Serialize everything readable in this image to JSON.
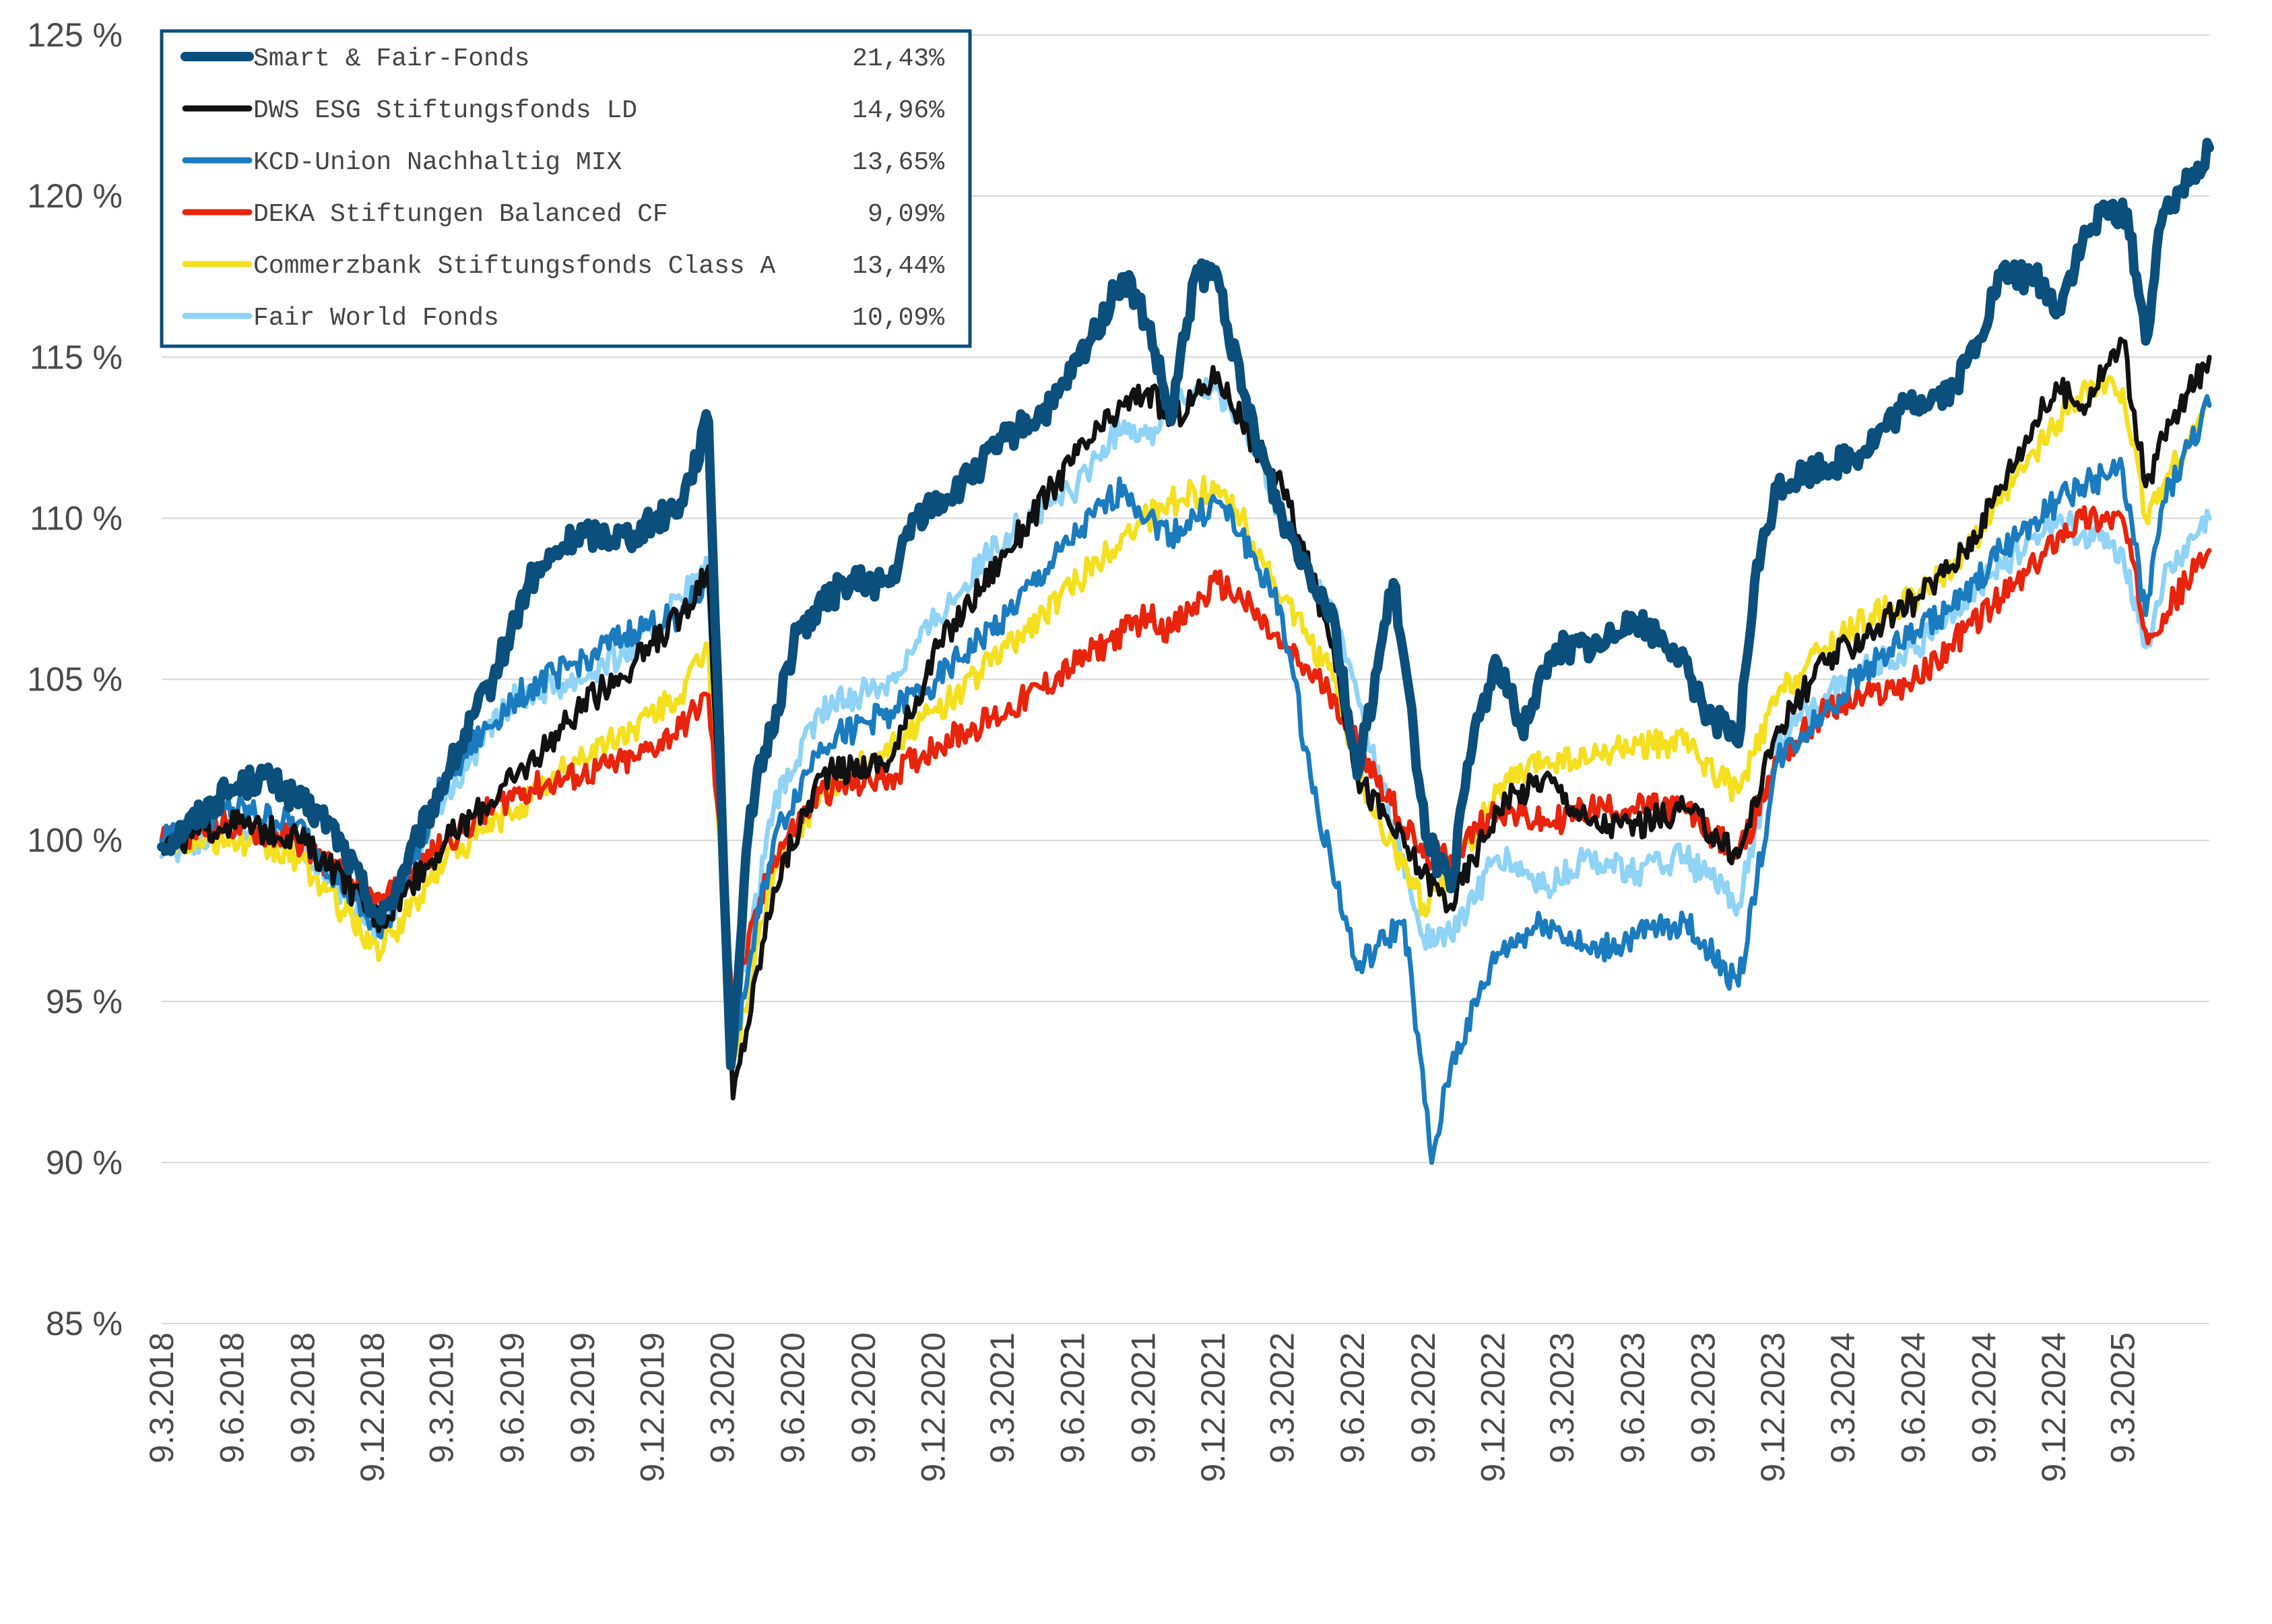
{
  "chart_data": {
    "type": "line",
    "title": "",
    "xlabel": "",
    "ylabel": "",
    "ylim": [
      85,
      125
    ],
    "yticks": [
      85,
      90,
      95,
      100,
      105,
      110,
      115,
      120,
      125
    ],
    "ytick_labels": [
      "85 %",
      "90 %",
      "95 %",
      "100 %",
      "105 %",
      "110 %",
      "115 %",
      "120 %",
      "125 %"
    ],
    "xlim": [
      "2018-03-09",
      "2025-06-30"
    ],
    "xticks": [
      "2018-03-09",
      "2018-06-09",
      "2018-09-09",
      "2018-12-09",
      "2019-03-09",
      "2019-06-09",
      "2019-09-09",
      "2019-12-09",
      "2020-03-09",
      "2020-06-09",
      "2020-09-09",
      "2020-12-09",
      "2021-03-09",
      "2021-06-09",
      "2021-09-09",
      "2021-12-09",
      "2022-03-09",
      "2022-06-09",
      "2022-09-09",
      "2022-12-09",
      "2023-03-09",
      "2023-06-09",
      "2023-09-09",
      "2023-12-09",
      "2024-03-09",
      "2024-06-09",
      "2024-09-09",
      "2024-12-09",
      "2025-03-09"
    ],
    "xtick_labels": [
      "9.3.2018",
      "9.6.2018",
      "9.9.2018",
      "9.12.2018",
      "9.3.2019",
      "9.6.2019",
      "9.9.2019",
      "9.12.2019",
      "9.3.2020",
      "9.6.2020",
      "9.9.2020",
      "9.12.2020",
      "9.3.2021",
      "9.6.2021",
      "9.9.2021",
      "9.12.2021",
      "9.3.2022",
      "9.6.2022",
      "9.9.2022",
      "9.12.2022",
      "9.3.2023",
      "9.6.2023",
      "9.9.2023",
      "9.12.2023",
      "9.3.2024",
      "9.6.2024",
      "9.9.2024",
      "9.12.2024",
      "9.3.2025"
    ],
    "grid": true,
    "legend_position": "top-left",
    "series": [
      {
        "name": "Smart & Fair-Fonds",
        "legend_value": "21,43%",
        "color": "#0b4f7c",
        "x": [
          "2018-03-09",
          "2018-06-01",
          "2018-07-20",
          "2018-10-15",
          "2018-12-20",
          "2019-03-15",
          "2019-05-15",
          "2019-07-01",
          "2019-09-01",
          "2019-11-15",
          "2020-01-15",
          "2020-02-20",
          "2020-03-20",
          "2020-04-15",
          "2020-06-15",
          "2020-08-15",
          "2020-10-15",
          "2020-11-15",
          "2021-01-15",
          "2021-03-15",
          "2021-05-15",
          "2021-07-01",
          "2021-08-15",
          "2021-09-15",
          "2021-10-15",
          "2021-11-15",
          "2021-12-15",
          "2022-01-15",
          "2022-03-09",
          "2022-05-15",
          "2022-06-15",
          "2022-08-01",
          "2022-09-15",
          "2022-10-15",
          "2022-11-15",
          "2022-12-15",
          "2023-01-15",
          "2023-03-01",
          "2023-05-01",
          "2023-06-01",
          "2023-08-01",
          "2023-09-15",
          "2023-10-25",
          "2023-11-15",
          "2023-12-15",
          "2024-02-01",
          "2024-04-01",
          "2024-06-01",
          "2024-08-01",
          "2024-09-01",
          "2024-10-01",
          "2024-11-15",
          "2024-12-15",
          "2025-01-15",
          "2025-02-15",
          "2025-03-15",
          "2025-04-08",
          "2025-05-01",
          "2025-06-30"
        ],
        "y": [
          99.8,
          101.5,
          102.0,
          100.5,
          97.5,
          102.0,
          105.0,
          108.0,
          109.5,
          109.5,
          110.5,
          113.0,
          93.0,
          101.0,
          106.5,
          108.0,
          108.0,
          110.0,
          111.0,
          112.5,
          113.5,
          115.5,
          117.5,
          116.0,
          113.0,
          117.5,
          117.5,
          114.0,
          110.0,
          107.0,
          102.0,
          108.0,
          100.0,
          98.5,
          103.5,
          105.5,
          103.5,
          106.0,
          106.0,
          107.0,
          106.0,
          104.0,
          103.0,
          108.0,
          111.0,
          111.5,
          112.0,
          113.5,
          114.0,
          115.5,
          117.5,
          117.5,
          116.5,
          118.5,
          119.5,
          119.5,
          115.5,
          119.5,
          121.5
        ]
      },
      {
        "name": "DWS ESG Stiftungsfonds LD",
        "legend_value": "14,96%",
        "color": "#111111",
        "x": [
          "2018-03-09",
          "2018-06-01",
          "2018-09-01",
          "2018-12-20",
          "2019-03-15",
          "2019-06-15",
          "2019-09-01",
          "2019-11-15",
          "2020-01-15",
          "2020-02-20",
          "2020-03-23",
          "2020-05-15",
          "2020-07-15",
          "2020-10-15",
          "2020-12-15",
          "2021-03-15",
          "2021-06-15",
          "2021-08-15",
          "2021-09-15",
          "2021-10-15",
          "2021-12-15",
          "2022-01-15",
          "2022-03-09",
          "2022-05-15",
          "2022-06-15",
          "2022-09-09",
          "2022-10-15",
          "2022-12-15",
          "2023-02-15",
          "2023-04-15",
          "2023-06-15",
          "2023-08-15",
          "2023-10-25",
          "2023-12-15",
          "2024-02-15",
          "2024-04-15",
          "2024-06-15",
          "2024-08-15",
          "2024-10-01",
          "2024-11-15",
          "2024-12-15",
          "2025-01-15",
          "2025-03-09",
          "2025-04-08",
          "2025-05-01",
          "2025-06-30"
        ],
        "y": [
          99.8,
          100.5,
          100.2,
          97.5,
          100.0,
          102.0,
          104.0,
          105.5,
          107.0,
          108.5,
          92.0,
          98.5,
          102.0,
          102.5,
          106.0,
          109.0,
          112.0,
          113.5,
          114.0,
          113.0,
          114.5,
          113.0,
          111.0,
          106.0,
          102.0,
          99.0,
          98.0,
          101.0,
          102.0,
          100.5,
          100.5,
          101.0,
          99.5,
          103.5,
          105.5,
          106.5,
          107.5,
          109.0,
          111.0,
          113.0,
          114.0,
          113.5,
          115.5,
          111.0,
          112.5,
          115.0
        ]
      },
      {
        "name": "KCD-Union Nachhaltig MIX",
        "legend_value": "13,65%",
        "color": "#1a7bbf",
        "x": [
          "2018-03-09",
          "2018-06-01",
          "2018-09-01",
          "2018-12-20",
          "2019-03-15",
          "2019-06-15",
          "2019-09-01",
          "2019-11-15",
          "2020-01-15",
          "2020-02-20",
          "2020-03-23",
          "2020-05-15",
          "2020-07-15",
          "2020-10-15",
          "2020-12-15",
          "2021-03-15",
          "2021-06-15",
          "2021-08-15",
          "2021-09-15",
          "2021-10-15",
          "2021-12-15",
          "2022-01-15",
          "2022-03-09",
          "2022-04-15",
          "2022-06-15",
          "2022-08-15",
          "2022-09-20",
          "2022-10-15",
          "2022-12-15",
          "2023-02-15",
          "2023-04-15",
          "2023-06-15",
          "2023-08-15",
          "2023-10-25",
          "2023-12-15",
          "2024-02-15",
          "2024-04-15",
          "2024-06-15",
          "2024-08-15",
          "2024-10-01",
          "2024-11-15",
          "2024-12-15",
          "2025-01-15",
          "2025-03-09",
          "2025-04-08",
          "2025-05-01",
          "2025-06-30"
        ],
        "y": [
          100.0,
          101.0,
          100.5,
          97.0,
          102.0,
          104.5,
          105.5,
          106.5,
          107.0,
          108.0,
          93.5,
          100.0,
          103.0,
          104.0,
          105.0,
          107.0,
          109.5,
          111.0,
          110.0,
          109.5,
          110.5,
          109.5,
          107.0,
          102.0,
          96.0,
          97.5,
          90.0,
          93.0,
          96.5,
          97.5,
          96.5,
          97.0,
          97.5,
          95.5,
          102.5,
          104.0,
          105.5,
          106.5,
          107.5,
          109.0,
          110.0,
          110.5,
          111.0,
          111.5,
          107.0,
          110.5,
          113.5
        ]
      },
      {
        "name": "DEKA Stiftungen Balanced CF",
        "legend_value": "9,09%",
        "color": "#e8240c",
        "x": [
          "2018-03-09",
          "2018-06-01",
          "2018-09-01",
          "2018-12-20",
          "2019-03-15",
          "2019-06-15",
          "2019-09-01",
          "2019-11-15",
          "2020-01-15",
          "2020-02-20",
          "2020-03-23",
          "2020-05-15",
          "2020-07-15",
          "2020-10-15",
          "2020-12-15",
          "2021-03-15",
          "2021-06-15",
          "2021-08-15",
          "2021-09-15",
          "2021-10-15",
          "2021-12-15",
          "2022-01-15",
          "2022-03-09",
          "2022-05-15",
          "2022-06-15",
          "2022-09-09",
          "2022-10-15",
          "2022-12-15",
          "2023-02-15",
          "2023-04-15",
          "2023-06-15",
          "2023-08-15",
          "2023-10-25",
          "2023-12-15",
          "2024-02-15",
          "2024-04-15",
          "2024-06-15",
          "2024-08-15",
          "2024-10-01",
          "2024-11-15",
          "2024-12-15",
          "2025-01-15",
          "2025-03-09",
          "2025-04-08",
          "2025-05-01",
          "2025-06-30"
        ],
        "y": [
          100.0,
          100.5,
          100.0,
          98.0,
          100.0,
          101.5,
          102.0,
          102.5,
          103.5,
          104.5,
          95.0,
          99.5,
          101.5,
          102.0,
          103.0,
          104.0,
          105.5,
          106.5,
          107.0,
          106.5,
          108.0,
          107.5,
          106.0,
          104.5,
          103.0,
          99.5,
          99.5,
          101.0,
          100.5,
          101.0,
          101.0,
          101.0,
          99.5,
          102.5,
          104.0,
          104.5,
          105.0,
          106.5,
          107.5,
          108.5,
          109.5,
          110.0,
          110.0,
          106.5,
          107.0,
          109.0
        ]
      },
      {
        "name": "Commerzbank Stiftungsfonds Class A",
        "legend_value": "13,44%",
        "color": "#f5e020",
        "x": [
          "2018-03-09",
          "2018-06-01",
          "2018-09-01",
          "2018-12-20",
          "2019-03-15",
          "2019-06-15",
          "2019-09-01",
          "2019-11-15",
          "2020-01-15",
          "2020-02-20",
          "2020-03-23",
          "2020-05-15",
          "2020-07-15",
          "2020-10-15",
          "2020-12-15",
          "2021-03-15",
          "2021-06-15",
          "2021-08-15",
          "2021-09-15",
          "2021-10-15",
          "2021-12-15",
          "2022-01-15",
          "2022-03-09",
          "2022-05-15",
          "2022-06-15",
          "2022-09-09",
          "2022-10-15",
          "2022-12-15",
          "2023-02-15",
          "2023-04-15",
          "2023-06-15",
          "2023-08-15",
          "2023-10-25",
          "2023-12-15",
          "2024-02-15",
          "2024-04-15",
          "2024-06-15",
          "2024-08-15",
          "2024-10-01",
          "2024-11-15",
          "2024-12-15",
          "2025-01-15",
          "2025-03-09",
          "2025-04-08",
          "2025-05-01",
          "2025-06-30"
        ],
        "y": [
          100.0,
          100.0,
          99.5,
          96.5,
          99.5,
          101.0,
          102.5,
          103.5,
          104.5,
          106.0,
          93.0,
          99.0,
          101.5,
          103.0,
          104.0,
          106.0,
          108.0,
          109.5,
          110.0,
          110.5,
          111.0,
          110.0,
          107.5,
          105.0,
          102.0,
          98.0,
          99.0,
          101.5,
          102.5,
          102.5,
          103.0,
          103.0,
          101.5,
          104.5,
          106.0,
          107.0,
          107.5,
          109.0,
          110.5,
          112.0,
          113.0,
          114.0,
          114.0,
          110.0,
          111.0,
          113.5
        ]
      },
      {
        "name": "Fair World Fonds",
        "legend_value": "10,09%",
        "color": "#8fd3f7",
        "x": [
          "2018-03-09",
          "2018-06-01",
          "2018-09-01",
          "2018-12-20",
          "2019-03-15",
          "2019-06-15",
          "2019-09-01",
          "2019-11-15",
          "2020-01-15",
          "2020-02-20",
          "2020-03-23",
          "2020-05-15",
          "2020-07-15",
          "2020-10-15",
          "2020-12-15",
          "2021-03-15",
          "2021-06-15",
          "2021-08-15",
          "2021-09-15",
          "2021-10-15",
          "2021-12-15",
          "2022-01-15",
          "2022-03-09",
          "2022-05-15",
          "2022-06-15",
          "2022-09-09",
          "2022-10-15",
          "2022-12-15",
          "2023-02-15",
          "2023-04-15",
          "2023-06-15",
          "2023-08-15",
          "2023-10-25",
          "2023-12-15",
          "2024-02-15",
          "2024-04-15",
          "2024-06-15",
          "2024-08-15",
          "2024-10-01",
          "2024-11-15",
          "2024-12-15",
          "2025-01-15",
          "2025-03-09",
          "2025-04-08",
          "2025-05-01",
          "2025-06-30"
        ],
        "y": [
          99.5,
          100.5,
          100.0,
          97.0,
          101.5,
          104.5,
          105.0,
          106.0,
          107.5,
          108.5,
          94.0,
          101.0,
          104.0,
          105.0,
          107.0,
          109.5,
          111.0,
          113.0,
          112.5,
          113.5,
          114.0,
          113.0,
          110.0,
          107.0,
          104.5,
          97.0,
          97.0,
          99.5,
          98.5,
          99.5,
          99.0,
          99.5,
          98.0,
          103.0,
          104.5,
          105.5,
          106.0,
          107.5,
          108.5,
          109.5,
          110.0,
          109.5,
          109.0,
          106.0,
          108.0,
          110.0
        ]
      }
    ]
  }
}
